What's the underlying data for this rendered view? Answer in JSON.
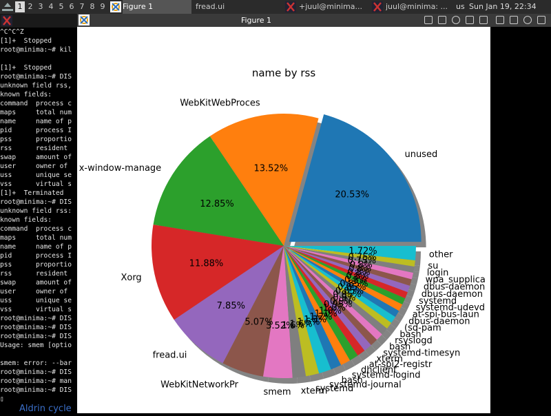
{
  "panel": {
    "workspaces": [
      "1",
      "2",
      "3",
      "4",
      "5",
      "6",
      "7",
      "8",
      "9"
    ],
    "active_workspace": "1",
    "tasks": [
      {
        "label": "Figure 1",
        "active": true
      },
      {
        "label": "fread.ui",
        "active": false
      },
      {
        "label": "+juul@minima...",
        "active": false
      },
      {
        "label": "juul@minima: ...",
        "active": false
      }
    ],
    "keyboard": "us",
    "clock": "Sun Jan 19, 22:34"
  },
  "terminal": {
    "lines": [
      "^C^C^Z",
      "[1]+  Stopped",
      "root@minima:~# kil",
      "",
      "[1]+  Stopped",
      "root@minima:~# DIS",
      "unknown field rss,",
      "known fields:",
      "command  process c",
      "maps     total num",
      "name     name of p",
      "pid      process I",
      "pss      proportio",
      "rss      resident",
      "swap     amount of",
      "user     owner of",
      "uss      unique se",
      "vss      virtual s",
      "[1]+  Terminated",
      "root@minima:~# DIS",
      "unknown field rss:",
      "known fields:",
      "command  process c",
      "maps     total num",
      "name     name of p",
      "pid      process I",
      "pss      proportio",
      "rss      resident",
      "swap     amount of",
      "user     owner of",
      "uss      unique se",
      "vss      virtual s",
      "root@minima:~# DIS",
      "root@minima:~# DIS",
      "root@minima:~# DIS",
      "Usage: smem [optio",
      "",
      "smem: error: --bar",
      "root@minima:~# DIS",
      "root@minima:~# man",
      "root@minima:~# DIS",
      "▯"
    ],
    "below_text": "Aldrin cycle"
  },
  "figure": {
    "window_title": "Figure 1"
  },
  "chart_data": {
    "type": "pie",
    "title": "name by rss",
    "slices": [
      {
        "label": "unused",
        "value": 20.53,
        "pct": "20.53%",
        "color": "#1f77b4",
        "explode": true
      },
      {
        "label": "WebKitWebProces",
        "value": 13.52,
        "pct": "13.52%",
        "color": "#ff7f0e"
      },
      {
        "label": "x-window-manage",
        "value": 12.85,
        "pct": "12.85%",
        "color": "#2ca02c"
      },
      {
        "label": "Xorg",
        "value": 11.88,
        "pct": "11.88%",
        "color": "#d62728"
      },
      {
        "label": "fread.ui",
        "value": 7.85,
        "pct": "7.85%",
        "color": "#9467bd"
      },
      {
        "label": "WebKitNetworkPr",
        "value": 5.07,
        "pct": "5.07%",
        "color": "#8c564b"
      },
      {
        "label": "smem",
        "value": 3.52,
        "pct": "3.52%",
        "color": "#e377c2"
      },
      {
        "label": "xterm",
        "value": 1.6,
        "pct": "1.6%",
        "color": "#7f7f7f"
      },
      {
        "label": "systemd",
        "value": 1.6,
        "pct": "1.6%",
        "color": "#bcbd22"
      },
      {
        "label": "systemd-journal",
        "value": 1.5,
        "pct": "1.5%",
        "color": "#17becf"
      },
      {
        "label": "bash",
        "value": 1.3,
        "pct": "1.3%",
        "color": "#1f77b4"
      },
      {
        "label": "systemd-logind",
        "value": 1.2,
        "pct": "1.2%",
        "color": "#ff7f0e"
      },
      {
        "label": "dhclient",
        "value": 1.1,
        "pct": "1.1%",
        "color": "#2ca02c"
      },
      {
        "label": "at-spi2-registr",
        "value": 1.0,
        "pct": "1.0%",
        "color": "#d62728"
      },
      {
        "label": "xterm",
        "value": 1.0,
        "pct": "1.0%",
        "color": "#9467bd"
      },
      {
        "label": "systemd-timesyn",
        "value": 0.95,
        "pct": "0.95%",
        "color": "#8c564b"
      },
      {
        "label": "bash",
        "value": 0.9,
        "pct": "0.9%",
        "color": "#e377c2"
      },
      {
        "label": "rsyslogd",
        "value": 0.9,
        "pct": "0.9%",
        "color": "#7f7f7f"
      },
      {
        "label": "bash",
        "value": 0.85,
        "pct": "0.85%",
        "color": "#bcbd22"
      },
      {
        "label": "(sd-pam",
        "value": 0.85,
        "pct": "0.85%",
        "color": "#17becf"
      },
      {
        "label": "dbus-daemon",
        "value": 0.85,
        "pct": "0.85%",
        "color": "#1f77b4"
      },
      {
        "label": "at-spi-bus-laun",
        "value": 0.85,
        "pct": "0.85%",
        "color": "#ff7f0e"
      },
      {
        "label": "systemd-udevd",
        "value": 0.8,
        "pct": "0.8%",
        "color": "#2ca02c"
      },
      {
        "label": "systemd",
        "value": 0.8,
        "pct": "0.8%",
        "color": "#d62728"
      },
      {
        "label": "dbus-daemon",
        "value": 0.8,
        "pct": "0.8%",
        "color": "#9467bd"
      },
      {
        "label": "dbus-daemon",
        "value": 0.8,
        "pct": "0.8%",
        "color": "#8c564b"
      },
      {
        "label": "wpa_supplica",
        "value": 0.8,
        "pct": "0.8%",
        "color": "#e377c2"
      },
      {
        "label": "login",
        "value": 0.75,
        "pct": "0.75%",
        "color": "#7f7f7f"
      },
      {
        "label": "su",
        "value": 0.75,
        "pct": "0.75%",
        "color": "#bcbd22"
      },
      {
        "label": "other",
        "value": 1.72,
        "pct": "1.72%",
        "color": "#17becf"
      }
    ]
  }
}
